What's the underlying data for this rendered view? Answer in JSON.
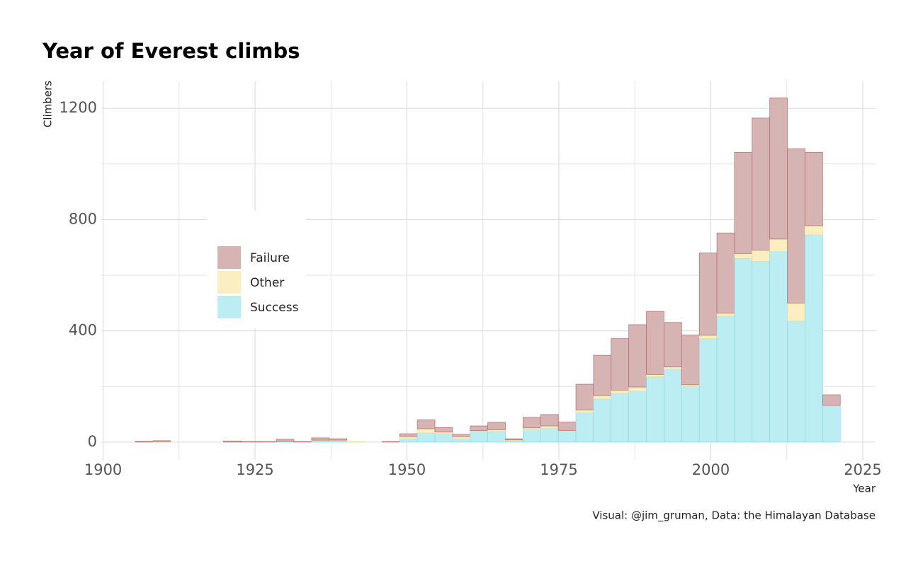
{
  "chart_data": {
    "type": "histogram",
    "title": "Year of Everest climbs",
    "x_label": "Year",
    "y_label": "Climbers",
    "caption": "Visual: @jim_gruman, Data:  the Himalayan Database",
    "bins": [
      1902.4,
      1905.3,
      1908.2,
      1911.1,
      1914.0,
      1916.9,
      1919.8,
      1922.7,
      1925.6,
      1928.5,
      1931.4,
      1934.3,
      1937.2,
      1940.1,
      1943.0,
      1945.9,
      1948.8,
      1951.7,
      1954.6,
      1957.5,
      1960.4,
      1963.3,
      1966.2,
      1969.1,
      1972.0,
      1974.9,
      1977.8,
      1980.7,
      1983.6,
      1986.5,
      1989.4,
      1992.3,
      1995.2,
      1998.1,
      2001.0,
      2003.9,
      2006.8,
      2009.7,
      2012.6,
      2015.5,
      2018.4,
      2021.3
    ],
    "series": [
      {
        "name": "Failure",
        "color": "#d6b4b4",
        "edge": "#b36a6a",
        "values": [
          0,
          3,
          3,
          0,
          0,
          0,
          4,
          2,
          2,
          7,
          2,
          8,
          5,
          0,
          0,
          2,
          10,
          32,
          16,
          8,
          17,
          27,
          4,
          38,
          41,
          30,
          93,
          145,
          185,
          224,
          227,
          160,
          179,
          296,
          288,
          364,
          475,
          508,
          555,
          264,
          38
        ]
      },
      {
        "name": "Other",
        "color": "#fbeec0",
        "edge": "#f3dc9a",
        "values": [
          0,
          0,
          2,
          0,
          0,
          0,
          0,
          0,
          0,
          0,
          0,
          2,
          3,
          2,
          0,
          0,
          8,
          15,
          6,
          8,
          3,
          6,
          2,
          6,
          8,
          2,
          10,
          12,
          12,
          15,
          8,
          8,
          6,
          12,
          12,
          18,
          40,
          45,
          65,
          33,
          2
        ]
      },
      {
        "name": "Success",
        "color": "#bcedf3",
        "edge": "#8fd8e3",
        "values": [
          0,
          0,
          0,
          0,
          0,
          0,
          0,
          0,
          0,
          3,
          0,
          5,
          4,
          0,
          0,
          0,
          12,
          33,
          30,
          12,
          38,
          38,
          6,
          45,
          50,
          40,
          105,
          155,
          175,
          183,
          235,
          262,
          200,
          372,
          452,
          660,
          650,
          685,
          435,
          745,
          130
        ]
      }
    ],
    "xlim": [
      1899.7,
      2027.1
    ],
    "xticks": [
      1900,
      1925,
      1950,
      1975,
      2000,
      2025
    ],
    "x_minor_ticks": [
      1912.5,
      1937.5,
      1962.5,
      1987.5,
      2012.5
    ],
    "ylim": [
      -64,
      1297
    ],
    "yticks": [
      0,
      400,
      800,
      1200
    ],
    "y_minor_ticks": [
      200,
      600,
      1000
    ],
    "grid": true
  }
}
